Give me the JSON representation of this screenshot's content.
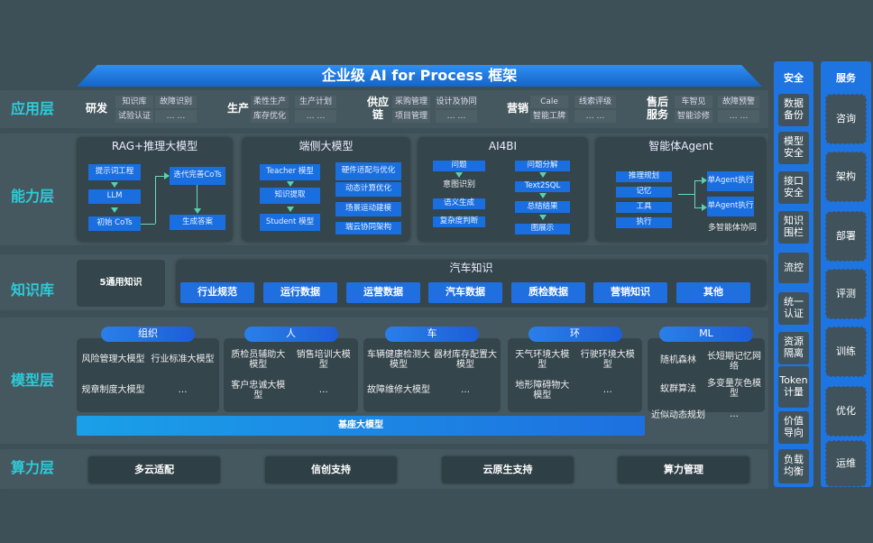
{
  "title": "企业级 AI for Process 框架",
  "layers": {
    "app": "应用层",
    "capability": "能力层",
    "knowledge": "知识库",
    "model": "模型层",
    "compute": "算力层"
  },
  "app_groups": [
    {
      "name": "研发",
      "items": [
        "知识库",
        "试验认证",
        "故障识别",
        "… …"
      ]
    },
    {
      "name": "生产",
      "items": [
        "柔性生产",
        "库存优化",
        "生产计划",
        "… …"
      ]
    },
    {
      "name": "供应链",
      "items": [
        "采购管理",
        "项目管理",
        "设计及协同",
        "… …"
      ]
    },
    {
      "name": "营销",
      "items": [
        "Cale",
        "智能工牌",
        "线索评级",
        "… …"
      ]
    },
    {
      "name": "售后服务",
      "items": [
        "车智见",
        "智能诊修",
        "故障预警",
        "… …"
      ]
    }
  ],
  "capability": {
    "rag": {
      "title": "RAG+推理大模型",
      "items": [
        "提示词工程",
        "LLM",
        "初始 CoTs",
        "迭代完善CoTs",
        "生成答案"
      ]
    },
    "edge": {
      "title": "端侧大模型",
      "items": [
        "Teacher 模型",
        "知识提取",
        "Student 模型",
        "硬件适配与优化",
        "动态计算优化",
        "场景运动建模",
        "端云协同架构"
      ]
    },
    "ai4bi": {
      "title": "AI4BI",
      "items": [
        "问题",
        "意图识别",
        "语义生成",
        "复杂度判断",
        "问题分解",
        "Text2SQL",
        "总结结果",
        "图展示"
      ]
    },
    "agent": {
      "title": "智能体Agent",
      "items": [
        "推理规划",
        "记忆",
        "工具",
        "执行",
        "单Agent执行",
        "单Agent执行"
      ],
      "footer": "多智能体协同"
    }
  },
  "knowledge": {
    "general": "5通用知识",
    "auto_title": "汽车知识",
    "chips": [
      "行业规范",
      "运行数据",
      "运营数据",
      "汽车数据",
      "质检数据",
      "营销知识",
      "其他"
    ]
  },
  "model": {
    "groups": [
      {
        "name": "组织",
        "items": [
          "风险管理大模型",
          "行业标准大模型",
          "规章制度大模型",
          "…"
        ]
      },
      {
        "name": "人",
        "items": [
          "质检员辅助大模型",
          "销售培训大模型",
          "客户忠诚大模型",
          "…"
        ]
      },
      {
        "name": "车",
        "items": [
          "车辆健康检测大模型",
          "器材库存配置大模型",
          "故障维修大模型",
          "…"
        ]
      },
      {
        "name": "环",
        "items": [
          "天气环境大模型",
          "行驶环境大模型",
          "地形障碍物大模型",
          "…"
        ]
      },
      {
        "name": "ML",
        "items": [
          "随机森林",
          "长短期记忆网络",
          "蚁群算法",
          "多变量灰色模型",
          "近似动态规划",
          "…"
        ]
      }
    ],
    "base": "基座大模型"
  },
  "compute": [
    "多云适配",
    "信创支持",
    "云原生支持",
    "算力管理"
  ],
  "security": {
    "title": "安全",
    "items": [
      "数据备份",
      "模型安全",
      "接口安全",
      "知识围栏",
      "流控",
      "统一认证",
      "资源隔离",
      "Token计量",
      "价值导向",
      "负载均衡"
    ]
  },
  "service": {
    "title": "服务",
    "items": [
      "咨询",
      "架构",
      "部署",
      "评测",
      "训练",
      "优化",
      "运维"
    ]
  },
  "colors": {
    "background": "#3d4f57",
    "accent": "#1e74e0",
    "layer_label": "#2ccbd8"
  }
}
